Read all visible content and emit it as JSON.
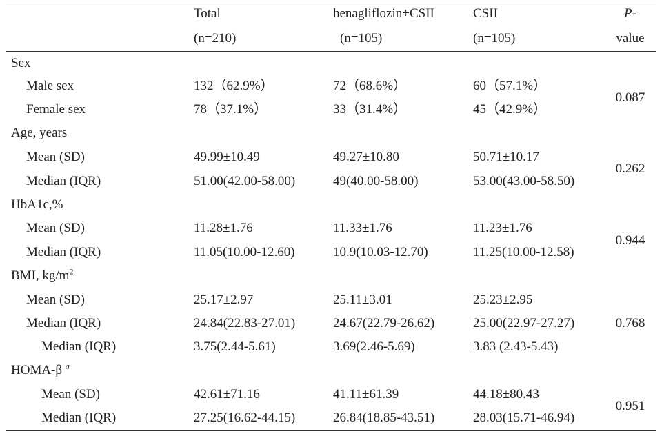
{
  "table": {
    "header": {
      "total": "Total",
      "total_n": "(n=210)",
      "heno": "henagliflozin+CSII",
      "heno_n": "(n=105)",
      "csii": "CSII",
      "csii_n": "(n=105)",
      "p_top": "P-",
      "p_bottom": "value"
    },
    "sex": {
      "label": "Sex",
      "male": {
        "label": "Male sex",
        "total": "132（62.9%）",
        "heno": "72（68.6%）",
        "csii": "60（57.1%）"
      },
      "female": {
        "label": "Female sex",
        "total": "78（37.1%）",
        "heno": "33（31.4%）",
        "csii": "45（42.9%）"
      },
      "p": "0.087"
    },
    "age": {
      "label": "Age, years",
      "mean": {
        "label": "Mean (SD)",
        "total": "49.99±10.49",
        "heno": "49.27±10.80",
        "csii": "50.71±10.17"
      },
      "median": {
        "label": "Median (IQR)",
        "total": "51.00(42.00-58.00)",
        "heno": "49(40.00-58.00)",
        "csii": "53.00(43.00-58.50)"
      },
      "p": "0.262"
    },
    "hba1c": {
      "label": "HbA1c,%",
      "mean": {
        "label": "Mean (SD)",
        "total": "11.28±1.76",
        "heno": "11.33±1.76",
        "csii": "11.23±1.76"
      },
      "median": {
        "label": "Median (IQR)",
        "total": "11.05(10.00-12.60)",
        "heno": "10.9(10.03-12.70)",
        "csii": "11.25(10.00-12.58)"
      },
      "p": "0.944"
    },
    "bmi": {
      "label": "BMI, kg/m",
      "label_sup": "2",
      "mean": {
        "label": "Mean (SD)",
        "total": "25.17±2.97",
        "heno": "25.11±3.01",
        "csii": "25.23±2.95"
      },
      "median": {
        "label": "Median (IQR)",
        "total": "24.84(22.83-27.01)",
        "heno": "24.67(22.79-26.62)",
        "csii": "25.00(22.97-27.27)"
      },
      "median2": {
        "label": "Median (IQR)",
        "total": "3.75(2.44-5.61)",
        "heno": "3.69(2.46-5.69)",
        "csii": "3.83 (2.43-5.43)"
      },
      "p": "0.768"
    },
    "homa": {
      "label": "HOMA-β ",
      "label_sup": "a",
      "mean": {
        "label": "Mean (SD)",
        "total": "42.61±71.16",
        "heno": "41.11±61.39",
        "csii": "44.18±80.43"
      },
      "median": {
        "label": "Median (IQR)",
        "total": "27.25(16.62-44.15)",
        "heno": "26.84(18.85-43.51)",
        "csii": "28.03(15.71-46.94)"
      },
      "p": "0.951"
    }
  }
}
